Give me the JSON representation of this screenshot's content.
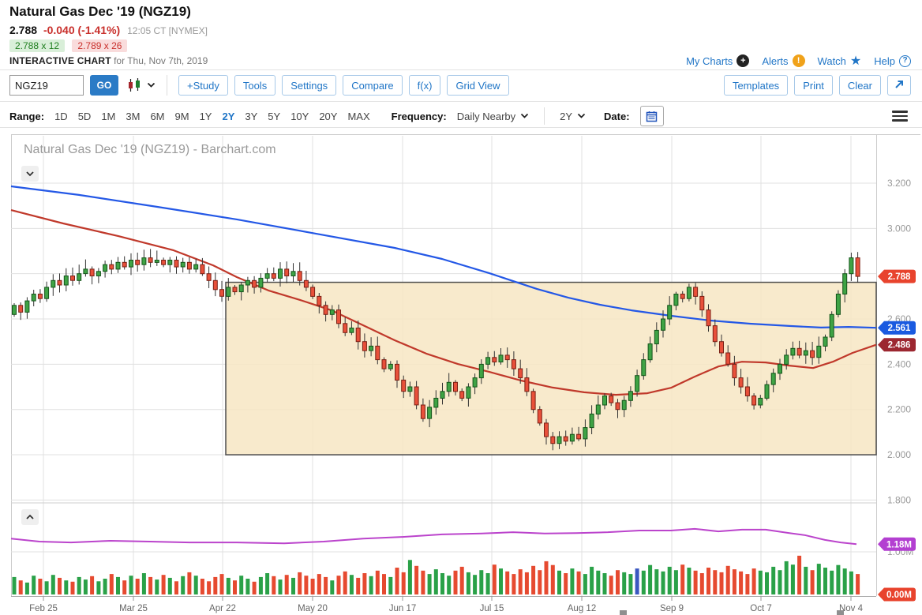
{
  "header": {
    "title": "Natural Gas Dec '19 (NGZ19)",
    "last": "2.788",
    "change": "-0.040 (-1.41%)",
    "time": "12:05 CT [NYMEX]",
    "bid": "2.788 x 12",
    "ask": "2.789 x 26",
    "chart_label": "INTERACTIVE CHART",
    "chart_date": "for Thu, Nov 7th, 2019",
    "links": [
      "My Charts",
      "Alerts",
      "Watch",
      "Help"
    ]
  },
  "toolbar": {
    "symbol_value": "NGZ19",
    "go_label": "GO",
    "buttons": [
      "+Study",
      "Tools",
      "Settings",
      "Compare",
      "f(x)",
      "Grid View"
    ],
    "right_buttons": [
      "Templates",
      "Print",
      "Clear"
    ]
  },
  "range_row": {
    "range_label": "Range:",
    "ranges": [
      "1D",
      "5D",
      "1M",
      "3M",
      "6M",
      "9M",
      "1Y",
      "2Y",
      "3Y",
      "5Y",
      "10Y",
      "20Y",
      "MAX"
    ],
    "selected_range": "2Y",
    "frequency_label": "Frequency:",
    "frequency_value": "Daily Nearby",
    "period_value": "2Y",
    "date_label": "Date:"
  },
  "chart_data": {
    "type": "candlestick",
    "title": "Natural Gas Dec '19 (NGZ19) - Barchart.com",
    "colors": {
      "candle_up": "#3fa345",
      "candle_up_edge": "#14541a",
      "candle_down": "#e8503a",
      "candle_down_edge": "#7a1f14",
      "ma_blue": "#2458e6",
      "ma_red": "#c0392b",
      "oi_purple": "#bb44cc",
      "vol_up": "#2aa148",
      "vol_down": "#e64a30",
      "vol_special": "#3a57c0",
      "box_fill": "#f7e6c3",
      "box_edge": "#4d4d4d",
      "grid": "#e0e0e0"
    },
    "x_ticks": [
      {
        "x": 55,
        "label": "Feb 25"
      },
      {
        "x": 169,
        "label": "Mar 25"
      },
      {
        "x": 282,
        "label": "Apr 22"
      },
      {
        "x": 396,
        "label": "May 20"
      },
      {
        "x": 510,
        "label": "Jun 17"
      },
      {
        "x": 623,
        "label": "Jul 15"
      },
      {
        "x": 737,
        "label": "Aug 12"
      },
      {
        "x": 851,
        "label": "Sep 9"
      },
      {
        "x": 964,
        "label": "Oct 7"
      },
      {
        "x": 1078,
        "label": "Nov 4"
      }
    ],
    "price_grid": [
      {
        "p": 3.2,
        "label": "3.200"
      },
      {
        "p": 3.0,
        "label": "3.000"
      },
      {
        "p": 2.8,
        "label": ""
      },
      {
        "p": 2.6,
        "label": "2.600"
      },
      {
        "p": 2.4,
        "label": "2.400"
      },
      {
        "p": 2.2,
        "label": "2.200"
      },
      {
        "p": 2.0,
        "label": "2.000"
      },
      {
        "p": 1.8,
        "label": "1.800"
      }
    ],
    "volume_grid": [
      {
        "m": 1.0,
        "label": "1.00M"
      }
    ],
    "badges": [
      {
        "label": "2.788",
        "price": 2.788,
        "color": "#e8432d"
      },
      {
        "label": "2.561",
        "price": 2.561,
        "color": "#1a5ae0"
      },
      {
        "label": "2.486",
        "price": 2.486,
        "color": "#9c2730"
      },
      {
        "label": "1.18M",
        "m": 1.18,
        "color": "#b33fd1"
      },
      {
        "label": "0.00M",
        "m": 0.0,
        "color": "#e8432d"
      }
    ],
    "open_first": 2.62,
    "closes": [
      2.66,
      2.63,
      2.68,
      2.71,
      2.69,
      2.74,
      2.77,
      2.75,
      2.79,
      2.77,
      2.8,
      2.82,
      2.79,
      2.81,
      2.84,
      2.82,
      2.85,
      2.83,
      2.86,
      2.84,
      2.87,
      2.85,
      2.86,
      2.84,
      2.86,
      2.83,
      2.85,
      2.82,
      2.84,
      2.8,
      2.77,
      2.73,
      2.7,
      2.74,
      2.72,
      2.75,
      2.77,
      2.74,
      2.78,
      2.8,
      2.78,
      2.82,
      2.79,
      2.81,
      2.77,
      2.74,
      2.7,
      2.66,
      2.62,
      2.64,
      2.58,
      2.54,
      2.56,
      2.5,
      2.46,
      2.48,
      2.42,
      2.38,
      2.4,
      2.33,
      2.28,
      2.3,
      2.22,
      2.16,
      2.21,
      2.25,
      2.28,
      2.32,
      2.28,
      2.25,
      2.3,
      2.34,
      2.4,
      2.43,
      2.41,
      2.44,
      2.42,
      2.38,
      2.34,
      2.28,
      2.2,
      2.14,
      2.08,
      2.05,
      2.08,
      2.06,
      2.09,
      2.07,
      2.12,
      2.18,
      2.22,
      2.26,
      2.23,
      2.2,
      2.24,
      2.28,
      2.35,
      2.42,
      2.49,
      2.55,
      2.6,
      2.66,
      2.71,
      2.69,
      2.74,
      2.7,
      2.64,
      2.57,
      2.5,
      2.45,
      2.4,
      2.34,
      2.3,
      2.26,
      2.22,
      2.25,
      2.31,
      2.36,
      2.4,
      2.44,
      2.47,
      2.44,
      2.46,
      2.43,
      2.48,
      2.52,
      2.62,
      2.71,
      2.8,
      2.87,
      2.788
    ],
    "volume_m": [
      0.41,
      0.33,
      0.28,
      0.44,
      0.37,
      0.31,
      0.46,
      0.39,
      0.33,
      0.3,
      0.41,
      0.35,
      0.43,
      0.31,
      0.37,
      0.48,
      0.41,
      0.33,
      0.44,
      0.37,
      0.5,
      0.41,
      0.35,
      0.46,
      0.39,
      0.31,
      0.43,
      0.52,
      0.44,
      0.37,
      0.31,
      0.41,
      0.48,
      0.39,
      0.33,
      0.44,
      0.37,
      0.3,
      0.41,
      0.5,
      0.43,
      0.35,
      0.46,
      0.39,
      0.52,
      0.44,
      0.37,
      0.48,
      0.41,
      0.33,
      0.44,
      0.54,
      0.46,
      0.39,
      0.5,
      0.43,
      0.56,
      0.48,
      0.41,
      0.63,
      0.52,
      0.81,
      0.67,
      0.56,
      0.48,
      0.59,
      0.5,
      0.44,
      0.56,
      0.65,
      0.52,
      0.46,
      0.57,
      0.5,
      0.7,
      0.61,
      0.54,
      0.48,
      0.59,
      0.52,
      0.67,
      0.57,
      0.78,
      0.69,
      0.56,
      0.5,
      0.61,
      0.54,
      0.48,
      0.65,
      0.56,
      0.5,
      0.44,
      0.57,
      0.52,
      0.48,
      0.61,
      0.56,
      0.69,
      0.59,
      0.54,
      0.65,
      0.57,
      0.7,
      0.63,
      0.56,
      0.5,
      0.63,
      0.57,
      0.52,
      0.67,
      0.59,
      0.54,
      0.48,
      0.61,
      0.56,
      0.52,
      0.65,
      0.57,
      0.78,
      0.7,
      0.91,
      0.65,
      0.57,
      0.72,
      0.63,
      0.56,
      0.69,
      0.61,
      0.54,
      0.48
    ],
    "volume_special_index": 96,
    "ma_blue": [
      [
        14,
        3.186
      ],
      [
        100,
        3.148
      ],
      [
        200,
        3.095
      ],
      [
        300,
        3.04
      ],
      [
        400,
        2.977
      ],
      [
        500,
        2.914
      ],
      [
        560,
        2.865
      ],
      [
        620,
        2.802
      ],
      [
        680,
        2.733
      ],
      [
        720,
        2.694
      ],
      [
        760,
        2.663
      ],
      [
        800,
        2.638
      ],
      [
        850,
        2.614
      ],
      [
        900,
        2.593
      ],
      [
        950,
        2.579
      ],
      [
        1000,
        2.569
      ],
      [
        1040,
        2.562
      ],
      [
        1075,
        2.565
      ],
      [
        1110,
        2.561
      ]
    ],
    "ma_red": [
      [
        14,
        3.081
      ],
      [
        80,
        3.022
      ],
      [
        150,
        2.966
      ],
      [
        220,
        2.903
      ],
      [
        270,
        2.837
      ],
      [
        300,
        2.785
      ],
      [
        340,
        2.726
      ],
      [
        380,
        2.684
      ],
      [
        420,
        2.638
      ],
      [
        460,
        2.572
      ],
      [
        500,
        2.506
      ],
      [
        540,
        2.447
      ],
      [
        580,
        2.401
      ],
      [
        620,
        2.366
      ],
      [
        660,
        2.328
      ],
      [
        700,
        2.297
      ],
      [
        740,
        2.276
      ],
      [
        780,
        2.265
      ],
      [
        820,
        2.272
      ],
      [
        850,
        2.296
      ],
      [
        880,
        2.345
      ],
      [
        910,
        2.39
      ],
      [
        940,
        2.411
      ],
      [
        970,
        2.408
      ],
      [
        1000,
        2.394
      ],
      [
        1030,
        2.383
      ],
      [
        1055,
        2.411
      ],
      [
        1080,
        2.45
      ],
      [
        1110,
        2.486
      ]
    ],
    "oi_purple": [
      [
        14,
        1.31
      ],
      [
        50,
        1.24
      ],
      [
        90,
        1.22
      ],
      [
        140,
        1.26
      ],
      [
        190,
        1.24
      ],
      [
        240,
        1.22
      ],
      [
        300,
        1.22
      ],
      [
        360,
        1.2
      ],
      [
        410,
        1.24
      ],
      [
        460,
        1.31
      ],
      [
        510,
        1.35
      ],
      [
        560,
        1.41
      ],
      [
        610,
        1.43
      ],
      [
        650,
        1.46
      ],
      [
        690,
        1.43
      ],
      [
        730,
        1.44
      ],
      [
        770,
        1.46
      ],
      [
        810,
        1.5
      ],
      [
        850,
        1.5
      ],
      [
        880,
        1.54
      ],
      [
        910,
        1.48
      ],
      [
        940,
        1.52
      ],
      [
        970,
        1.52
      ],
      [
        1000,
        1.44
      ],
      [
        1020,
        1.39
      ],
      [
        1045,
        1.28
      ],
      [
        1065,
        1.22
      ],
      [
        1085,
        1.18
      ]
    ],
    "box": {
      "x1": 286,
      "x2": 1110,
      "price_top": 2.762,
      "price_bottom": 2.0
    },
    "handles": [
      [
        785,
        773
      ],
      [
        1060,
        773
      ]
    ]
  }
}
